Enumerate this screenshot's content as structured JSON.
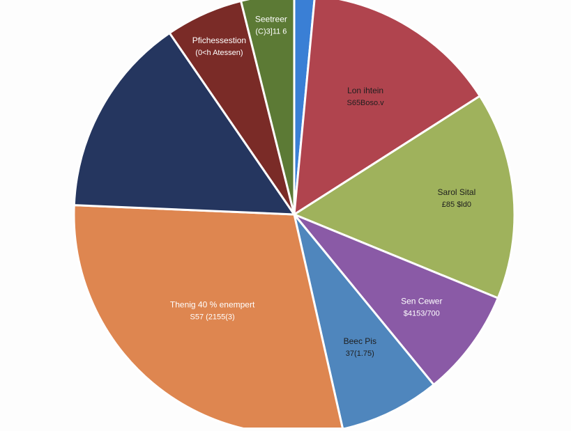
{
  "chart_data": {
    "type": "pie",
    "title": "",
    "slices": [
      {
        "label": "",
        "value_text": "",
        "value": 1.5,
        "color": "#3a7fd5",
        "text_color": "#ffffff"
      },
      {
        "label": "Lon ihtein",
        "value_text": "S65Boso.v",
        "value": 14.5,
        "color": "#b0444e",
        "text_color": "#1e1e1e"
      },
      {
        "label": "Sarol Sital",
        "value_text": "£85 $ld0",
        "value": 15.3,
        "color": "#9fb25c",
        "text_color": "#1e1e1e"
      },
      {
        "label": "Sen Cewer",
        "value_text": "$4153/700",
        "value": 7.9,
        "color": "#8a5aa6",
        "text_color": "#ffffff"
      },
      {
        "label": "Beec Pis",
        "value_text": "37(1.75)",
        "value": 7.4,
        "color": "#4f86bd",
        "text_color": "#1e1e1e"
      },
      {
        "label": "Thenig 40 % enempert",
        "value_text": "S57 (2155(3)",
        "value": 29.3,
        "color": "#de8650",
        "text_color": "#ffffff"
      },
      {
        "label": "",
        "value_text": "",
        "value": 14.8,
        "color": "#25365f",
        "text_color": "#ffffff"
      },
      {
        "label": "Pfichessestion",
        "value_text": "(0<h Atessen)",
        "value": 5.7,
        "color": "#7a2b27",
        "text_color": "#ffffff"
      },
      {
        "label": "Seetreer",
        "value_text": "(C)3]11 6",
        "value": 3.9,
        "color": "#5c7a35",
        "text_color": "#ffffff"
      }
    ]
  }
}
